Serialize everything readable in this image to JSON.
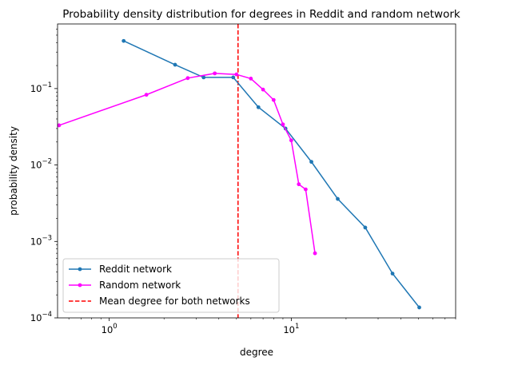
{
  "chart_data": {
    "type": "line",
    "title": "Probability density distribution for degrees in Reddit and random network",
    "xlabel": "degree",
    "ylabel": "probability density",
    "xscale": "log",
    "yscale": "log",
    "xlim": [
      0.52,
      80
    ],
    "ylim": [
      0.0001,
      0.7
    ],
    "xticks": [
      {
        "value": 1,
        "base": "10",
        "exp": "0"
      },
      {
        "value": 10,
        "base": "10",
        "exp": "1"
      }
    ],
    "yticks": [
      {
        "value": 0.0001,
        "base": "10",
        "exp": "−4"
      },
      {
        "value": 0.001,
        "base": "10",
        "exp": "−3"
      },
      {
        "value": 0.01,
        "base": "10",
        "exp": "−2"
      },
      {
        "value": 0.1,
        "base": "10",
        "exp": "−1"
      }
    ],
    "series": [
      {
        "name": "Reddit network",
        "color": "#1f77b4",
        "marker": "circle",
        "x": [
          1.2,
          2.3,
          3.3,
          4.8,
          6.6,
          9.3,
          12.9,
          18.0,
          25.5,
          36.0,
          50.5
        ],
        "y": [
          0.42,
          0.205,
          0.14,
          0.14,
          0.057,
          0.03,
          0.011,
          0.0036,
          0.00152,
          0.00038,
          0.000137
        ]
      },
      {
        "name": "Random network",
        "color": "#ff00ff",
        "marker": "circle",
        "x": [
          0.53,
          1.6,
          2.7,
          3.8,
          5.0,
          6.0,
          7.0,
          8.0,
          9.0,
          10.0,
          11.0,
          12.0,
          13.5
        ],
        "y": [
          0.033,
          0.083,
          0.137,
          0.158,
          0.153,
          0.135,
          0.097,
          0.071,
          0.034,
          0.021,
          0.0056,
          0.0048,
          0.0007
        ]
      }
    ],
    "vline": {
      "name": "Mean degree for both networks",
      "x": 5.1,
      "color": "#ff0000",
      "style": "dashed"
    },
    "legend_position": "lower-left",
    "grid": false
  }
}
